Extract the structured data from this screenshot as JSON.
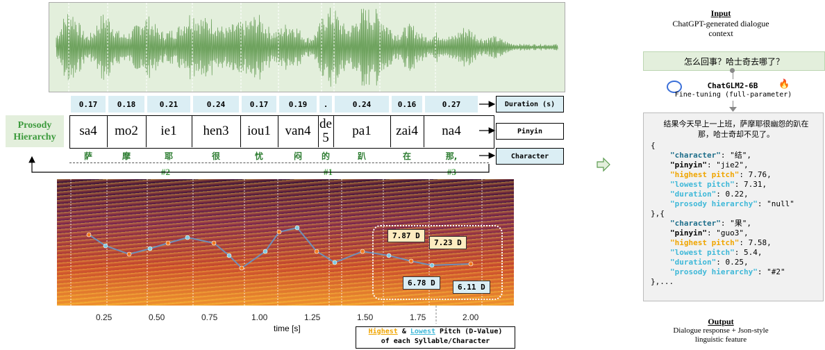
{
  "durations": [
    "0.17",
    "0.18",
    "0.21",
    "0.24",
    "0.17",
    "0.19",
    ".",
    "0.24",
    "0.16",
    "0.27"
  ],
  "pinyin": [
    "sa4",
    "mo2",
    "ie1",
    "hen3",
    "iou1",
    "van4",
    "de 5",
    "pa1",
    "zai4",
    "na4"
  ],
  "characters": [
    "萨",
    "摩",
    "耶",
    "很",
    "忧",
    "闷",
    "的",
    "趴",
    "在",
    "那,"
  ],
  "hierarchy_marks": [
    "#2",
    "#1",
    "#3"
  ],
  "row_labels": {
    "duration": "Duration (s)",
    "pinyin": "Pinyin",
    "character": "Character"
  },
  "prosody_label": "Prosody Hierarchy",
  "time_axis": {
    "label": "time [s]",
    "ticks": [
      "0.25",
      "0.50",
      "0.75",
      "1.00",
      "1.25",
      "1.50",
      "1.75",
      "2.00"
    ]
  },
  "pitch_boxes": {
    "high1": "7.87 D",
    "high2": "7.23 D",
    "low1": "6.78 D",
    "low2": "6.11 D"
  },
  "legend": {
    "highest": "Highest",
    "amp": "&",
    "lowest": "Lowest",
    "rest": "Pitch (D-Value)",
    "line2": "of each Syllable/Character"
  },
  "right_panel": {
    "input_title": "Input",
    "input_desc": "ChatGPT-generated dialogue context",
    "prompt": "怎么回事？哈士奇去哪了？",
    "model_name": "ChatGLM2-6B",
    "model_sub": "Fine-tuning (full-parameter)",
    "response": "结果今天早上一上班，萨摩耶很幽怨的趴在那，哈士奇却不见了。",
    "output_title": "Output",
    "output_desc": "Dialogue response + Json-style linguistic feature"
  },
  "json_entries": [
    {
      "character": "\"结\",",
      "pinyin": "\"jie2\",",
      "highest": "7.76,",
      "lowest": "7.31,",
      "duration": "0.22,",
      "prosody": "\"null\""
    },
    {
      "character": "\"果\",",
      "pinyin": "\"guo3\",",
      "highest": "7.58,",
      "lowest": "5.4,",
      "duration": "0.25,",
      "prosody": "\"#2\""
    }
  ],
  "json_keys": {
    "character": "\"character\"",
    "pinyin": "\"pinyin\"",
    "highest": "\"highest pitch\"",
    "lowest": "\"lowest pitch\"",
    "duration": "\"duration\"",
    "prosody": "\"prosody hierarchy\""
  },
  "json_punct": {
    "open": "{",
    "mid": "},{",
    "end": "},...",
    "colon": ":"
  },
  "colors": {
    "green": "#5b9b4f",
    "box_blue": "#dbeef4",
    "box_yellow": "#fdecc0",
    "orange": "#f0a500",
    "cyan": "#3fb8d8"
  }
}
